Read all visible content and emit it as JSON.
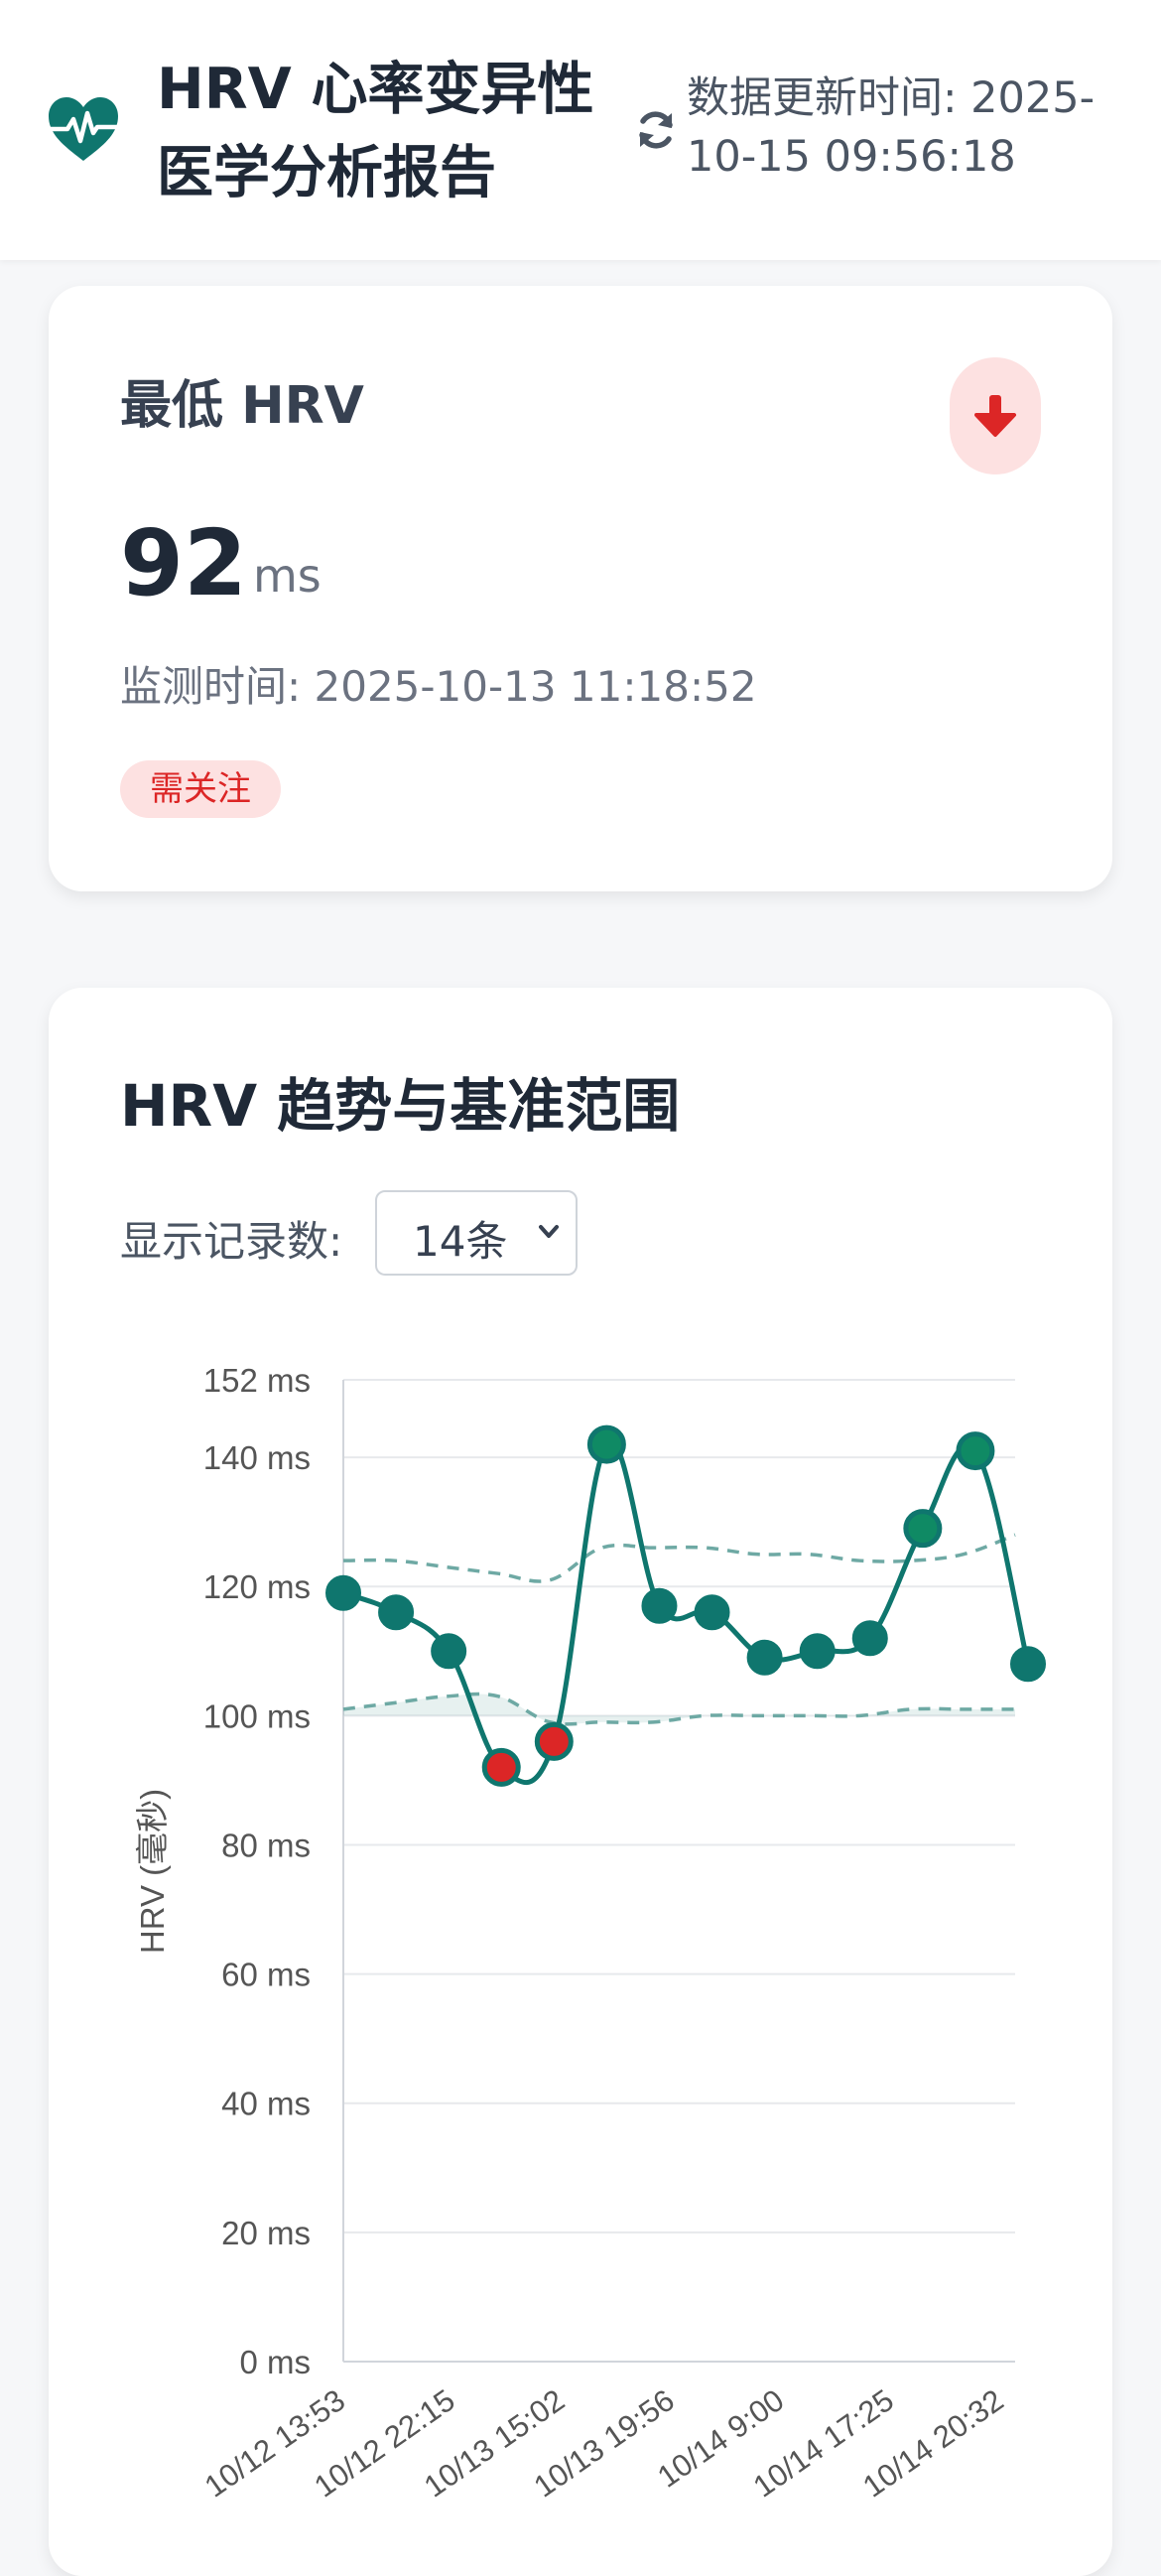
{
  "header": {
    "title": "HRV 心率变异性医学分析报告",
    "update_text": "数据更新时间: 2025-10-15 09:56:18",
    "logo_icon": "heart-pulse-icon",
    "refresh_icon": "refresh-icon"
  },
  "min_card": {
    "label": "最低 HRV",
    "value": "92",
    "unit": "ms",
    "monitor_time": "监测时间: 2025-10-13 11:18:52",
    "status": "需关注",
    "trend_icon": "arrow-down-icon"
  },
  "trend_card": {
    "title": "HRV 趋势与基准范围",
    "count_label": "显示记录数:",
    "count_value": "14条"
  },
  "colors": {
    "accent": "#0f766e",
    "alert": "#dc2626",
    "alert_bg": "#fde1e1"
  },
  "chart_data": {
    "type": "line",
    "ylabel": "HRV (毫秒)",
    "ylim": [
      0,
      152
    ],
    "y_ticks": [
      "0 ms",
      "20 ms",
      "40 ms",
      "60 ms",
      "80 ms",
      "100 ms",
      "120 ms",
      "140 ms",
      "152 ms"
    ],
    "x_tick_labels": [
      "10/12 13:53",
      "10/12 22:15",
      "10/13 15:02",
      "10/13 19:56",
      "10/14 9:00",
      "10/14 17:25",
      "10/14 20:32"
    ],
    "grid": true,
    "series": [
      {
        "values": [
          119,
          116,
          110,
          92,
          96,
          142,
          117,
          116,
          109,
          110,
          112,
          129,
          141,
          108
        ],
        "alert_points": [
          3,
          4
        ],
        "highlight_points": [
          5,
          11,
          12
        ]
      }
    ],
    "baseline_upper": [
      124,
      124,
      123,
      122,
      121,
      126,
      126,
      126,
      125,
      125,
      124,
      124,
      125,
      128
    ],
    "baseline_lower": [
      101,
      102,
      103,
      103,
      99,
      99,
      99,
      100,
      100,
      100,
      100,
      101,
      101,
      101
    ]
  }
}
